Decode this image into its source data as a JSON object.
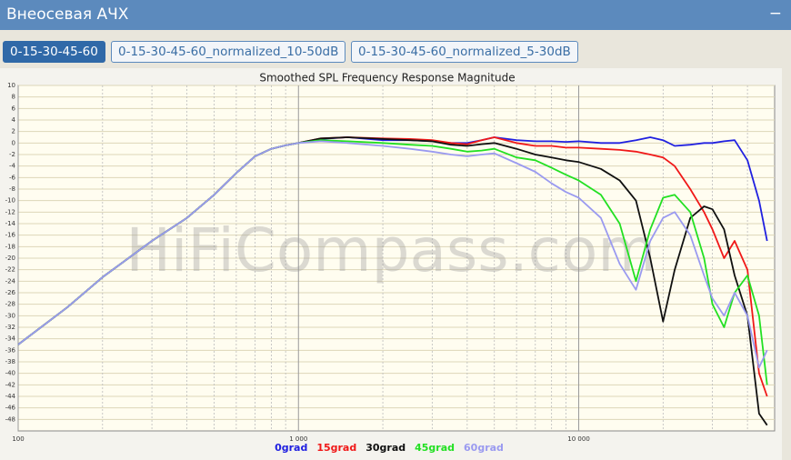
{
  "header": {
    "title": "Внеосевая АЧХ",
    "collapse": "−"
  },
  "tabs": {
    "items": [
      "0-15-30-45-60",
      "0-15-30-45-60_normalized_10-50dB",
      "0-15-30-45-60_normalized_5-30dB"
    ],
    "active": 0
  },
  "chart_data": {
    "type": "line",
    "title": "Smoothed SPL Frequency Response Magnitude",
    "watermark": "HiFiCompass.com",
    "xscale": "log",
    "xlim": [
      100,
      50000
    ],
    "xticks": [
      100,
      {
        "value": 1000,
        "label": "1 000"
      },
      {
        "value": 10000,
        "label": "10 000"
      }
    ],
    "xminor_ticks": [
      200,
      300,
      400,
      500,
      600,
      700,
      800,
      900,
      2000,
      3000,
      4000,
      5000,
      6000,
      7000,
      8000,
      9000,
      20000,
      30000,
      40000
    ],
    "ylim": [
      -50,
      10
    ],
    "yticks": [
      10,
      8,
      6,
      4,
      2,
      0,
      -2,
      -4,
      -6,
      -8,
      -10,
      -12,
      -14,
      -16,
      -18,
      -20,
      -22,
      -24,
      -26,
      -28,
      -30,
      -32,
      -34,
      -36,
      -38,
      -40,
      -42,
      -44,
      -46,
      -48
    ],
    "grid": true,
    "x": [
      100,
      150,
      200,
      300,
      400,
      500,
      600,
      700,
      800,
      900,
      1000,
      1200,
      1500,
      2000,
      2500,
      3000,
      3500,
      4000,
      4500,
      5000,
      6000,
      7000,
      8000,
      9000,
      10000,
      12000,
      14000,
      16000,
      18000,
      20000,
      22000,
      25000,
      28000,
      30000,
      33000,
      36000,
      40000,
      44000,
      47000
    ],
    "series": [
      {
        "name": "0grad",
        "color": "#2020e0",
        "values": [
          -35,
          -28.5,
          -23.3,
          -17,
          -13,
          -9,
          -5.2,
          -2.3,
          -1,
          -0.4,
          0,
          0.7,
          1,
          0.5,
          0.5,
          0.3,
          0,
          0,
          0.5,
          1,
          0.5,
          0.3,
          0.3,
          0.2,
          0.3,
          0,
          0,
          0.5,
          1,
          0.5,
          -0.5,
          -0.3,
          0,
          0,
          0.3,
          0.5,
          -3,
          -10,
          -17
        ]
      },
      {
        "name": "15grad",
        "color": "#f01818",
        "values": [
          -35,
          -28.5,
          -23.3,
          -17,
          -13,
          -9,
          -5.2,
          -2.3,
          -1,
          -0.4,
          0,
          0.8,
          1,
          0.8,
          0.7,
          0.5,
          0,
          -0.2,
          0.5,
          1,
          0,
          -0.5,
          -0.5,
          -0.8,
          -0.8,
          -1,
          -1.2,
          -1.5,
          -2,
          -2.5,
          -4,
          -8,
          -12,
          -15,
          -20,
          -17,
          -22,
          -40,
          -44
        ]
      },
      {
        "name": "30grad",
        "color": "#101010",
        "values": [
          -35,
          -28.5,
          -23.3,
          -17,
          -13,
          -9,
          -5.2,
          -2.3,
          -1,
          -0.4,
          0,
          0.8,
          1,
          0.7,
          0.5,
          0.3,
          -0.3,
          -0.5,
          -0.2,
          0,
          -1,
          -2,
          -2.5,
          -3,
          -3.3,
          -4.5,
          -6.5,
          -10,
          -20,
          -31,
          -22,
          -13,
          -11,
          -11.5,
          -15,
          -23,
          -30,
          -47,
          -49
        ]
      },
      {
        "name": "45grad",
        "color": "#22e022",
        "values": [
          -35,
          -28.5,
          -23.3,
          -17,
          -13,
          -9,
          -5.2,
          -2.3,
          -1,
          -0.4,
          0,
          0.5,
          0.3,
          0,
          -0.3,
          -0.5,
          -1,
          -1.5,
          -1.3,
          -1,
          -2.5,
          -3,
          -4.3,
          -5.5,
          -6.5,
          -9,
          -14,
          -24,
          -15,
          -9.5,
          -9,
          -12,
          -20,
          -28,
          -32,
          -26,
          -23,
          -30,
          -42
        ]
      },
      {
        "name": "60grad",
        "color": "#9a9af0",
        "values": [
          -35,
          -28.5,
          -23.3,
          -17,
          -13,
          -9,
          -5.2,
          -2.3,
          -1,
          -0.4,
          0,
          0.3,
          0,
          -0.5,
          -1,
          -1.5,
          -2,
          -2.3,
          -2,
          -1.8,
          -3.5,
          -5,
          -7,
          -8.5,
          -9.5,
          -13,
          -21,
          -25.5,
          -17,
          -13,
          -12,
          -16,
          -23,
          -27,
          -30,
          -26,
          -30,
          -39,
          -36
        ]
      }
    ]
  }
}
